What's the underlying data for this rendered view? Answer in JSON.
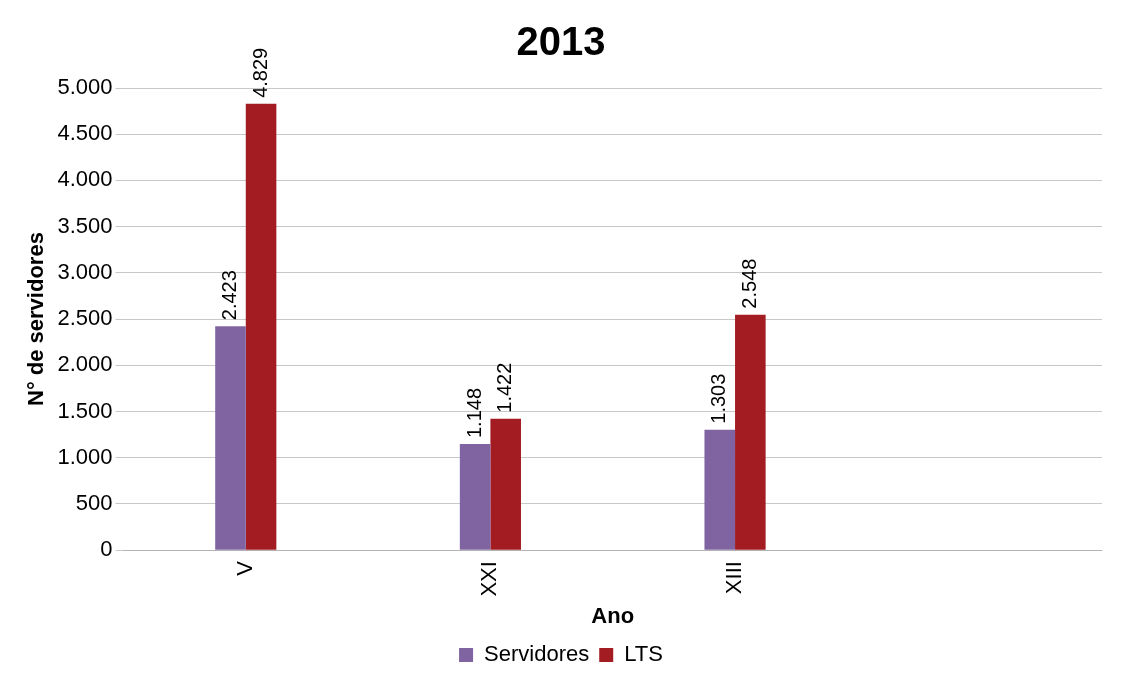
{
  "chart_data": {
    "type": "bar",
    "title": "2013",
    "xlabel": "Ano",
    "ylabel": "N° de servidores",
    "categories": [
      "V",
      "XXI",
      "XIII",
      null
    ],
    "series": [
      {
        "name": "Servidores",
        "color": "#8064a2",
        "values": [
          2423,
          1148,
          1303,
          null
        ],
        "value_labels": [
          "2.423",
          "1.148",
          "1.303",
          null
        ]
      },
      {
        "name": "LTS",
        "color": "#a31c22",
        "values": [
          4829,
          1422,
          2548,
          null
        ],
        "value_labels": [
          "4.829",
          "1.422",
          "2.548",
          null
        ]
      }
    ],
    "ylim": [
      0,
      5000
    ],
    "yticks": [
      {
        "value": 0,
        "label": "0"
      },
      {
        "value": 500,
        "label": "500"
      },
      {
        "value": 1000,
        "label": "1.000"
      },
      {
        "value": 1500,
        "label": "1.500"
      },
      {
        "value": 2000,
        "label": "2.000"
      },
      {
        "value": 2500,
        "label": "2.500"
      },
      {
        "value": 3000,
        "label": "3.000"
      },
      {
        "value": 3500,
        "label": "3.500"
      },
      {
        "value": 4000,
        "label": "4.000"
      },
      {
        "value": 4500,
        "label": "4.500"
      },
      {
        "value": 5000,
        "label": "5.000"
      }
    ],
    "grid": "y",
    "legend": "bottom"
  }
}
